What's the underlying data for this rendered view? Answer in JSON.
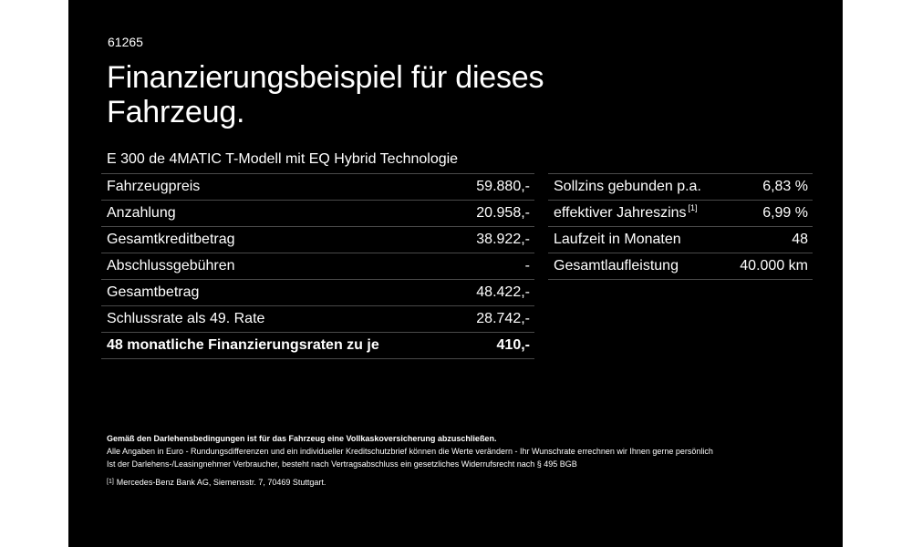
{
  "code": "61265",
  "title": "Finanzierungsbeispiel für dieses Fahrzeug.",
  "model": "E 300 de 4MATIC T-Modell mit EQ Hybrid Technologie",
  "left_rows": [
    {
      "label": "Fahrzeugpreis",
      "value": "59.880,-"
    },
    {
      "label": "Anzahlung",
      "value": "20.958,-"
    },
    {
      "label": "Gesamtkreditbetrag",
      "value": "38.922,-"
    },
    {
      "label": "Abschlussgebühren",
      "value": "-"
    },
    {
      "label": "Gesamtbetrag",
      "value": "48.422,-"
    },
    {
      "label": "Schlussrate als 49. Rate",
      "value": "28.742,-"
    },
    {
      "label": "48 monatliche Finanzierungsraten zu je",
      "value": "410,-"
    }
  ],
  "right_rows": [
    {
      "label": "Sollzins gebunden p.a.",
      "value": "6,83 %"
    },
    {
      "label": "effektiver Jahreszins",
      "sup": "[1]",
      "value": "6,99 %"
    },
    {
      "label": "Laufzeit in Monaten",
      "value": "48"
    },
    {
      "label": "Gesamtlaufleistung",
      "value": "40.000 km"
    }
  ],
  "notes": {
    "insurance": "Gemäß den Darlehensbedingungen ist für das Fahrzeug eine Vollkaskoversicherung abzuschließen.",
    "line1": "Alle Angaben in Euro - Rundungsdifferenzen und ein individueller Kreditschutzbrief können die Werte verändern - Ihr Wunschrate errechnen wir Ihnen gerne persönlich",
    "line2": "Ist der Darlehens-/Leasingnehmer Verbraucher, besteht nach Vertragsabschluss ein gesetzliches Widerrufsrecht nach § 495 BGB",
    "footnote_mark": "[1]",
    "footnote": "Mercedes-Benz Bank AG, Siemensstr. 7, 70469 Stuttgart."
  }
}
